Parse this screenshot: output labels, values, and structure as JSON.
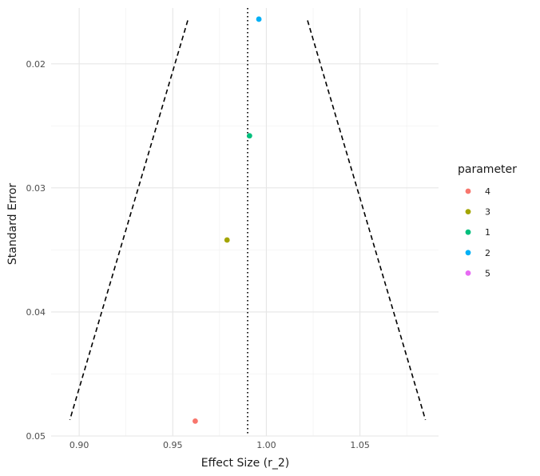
{
  "chart_data": {
    "type": "scatter",
    "title": "",
    "xlabel": "Effect Size (r_2)",
    "ylabel": "Standard Error",
    "xlim": [
      0.885,
      1.092
    ],
    "ylim": [
      0.0155,
      0.05
    ],
    "y_reversed": true,
    "grid": true,
    "x_ticks": [
      0.9,
      0.95,
      1.0,
      1.05
    ],
    "x_tick_labels": [
      "0.90",
      "0.95",
      "1.00",
      "1.05"
    ],
    "y_ticks": [
      0.02,
      0.03,
      0.04,
      0.05
    ],
    "y_tick_labels": [
      "0.02",
      "0.03",
      "0.04",
      "0.05"
    ],
    "legend": {
      "title": "parameter",
      "placement": "right",
      "entries": [
        {
          "label": "4",
          "color": "#F8766D"
        },
        {
          "label": "3",
          "color": "#A3A500"
        },
        {
          "label": "1",
          "color": "#00BF7D"
        },
        {
          "label": "2",
          "color": "#00B0F6"
        },
        {
          "label": "5",
          "color": "#E76BF3"
        }
      ]
    },
    "series": [
      {
        "name": "4",
        "color": "#F8766D",
        "points": [
          {
            "x": 0.962,
            "y": 0.0488
          }
        ]
      },
      {
        "name": "3",
        "color": "#A3A500",
        "points": [
          {
            "x": 0.979,
            "y": 0.0342
          }
        ]
      },
      {
        "name": "1",
        "color": "#00BF7D",
        "points": [
          {
            "x": 0.991,
            "y": 0.0258
          }
        ]
      },
      {
        "name": "2",
        "color": "#00B0F6",
        "points": [
          {
            "x": 0.996,
            "y": 0.0164
          }
        ]
      }
    ],
    "reference_line": {
      "x": 0.99,
      "style": "dotted"
    },
    "funnel_lines": [
      {
        "style": "dashed",
        "points": [
          {
            "x": 0.958,
            "y": 0.0165
          },
          {
            "x": 0.895,
            "y": 0.0487
          }
        ]
      },
      {
        "style": "dashed",
        "points": [
          {
            "x": 1.022,
            "y": 0.0165
          },
          {
            "x": 1.085,
            "y": 0.0487
          }
        ]
      }
    ]
  }
}
